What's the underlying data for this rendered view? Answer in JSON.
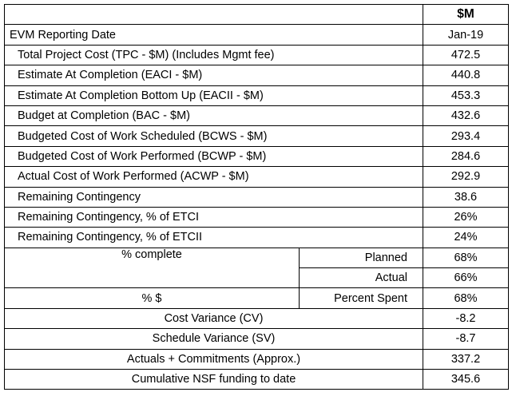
{
  "header": {
    "unit": "$M"
  },
  "rows": [
    {
      "label": "EVM Reporting Date",
      "value": "Jan-19"
    },
    {
      "label": "Total Project Cost (TPC - $M) (Includes Mgmt fee)",
      "value": "472.5"
    },
    {
      "label": "Estimate At Completion (EACI - $M)",
      "value": "440.8"
    },
    {
      "label": "Estimate At Completion Bottom Up (EACII - $M)",
      "value": "453.3"
    },
    {
      "label": "Budget at Completion (BAC - $M)",
      "value": "432.6"
    },
    {
      "label": "Budgeted Cost of Work Scheduled (BCWS - $M)",
      "value": "293.4"
    },
    {
      "label": "Budgeted Cost of Work Performed (BCWP - $M)",
      "value": "284.6"
    },
    {
      "label": "Actual Cost of Work Performed (ACWP - $M)",
      "value": "292.9"
    },
    {
      "label": "Remaining Contingency",
      "value": "38.6"
    },
    {
      "label": "Remaining Contingency, % of ETCI",
      "value": "26%"
    },
    {
      "label": "Remaining Contingency, % of ETCII",
      "value": "24%"
    }
  ],
  "percent_complete": {
    "label": "% complete",
    "planned_label": "Planned",
    "planned_value": "68%",
    "actual_label": "Actual",
    "actual_value": "66%"
  },
  "percent_dollars": {
    "label": "% $",
    "spent_label": "Percent Spent",
    "spent_value": "68%"
  },
  "bottom_rows": [
    {
      "label": "Cost Variance (CV)",
      "value": "-8.2"
    },
    {
      "label": "Schedule Variance (SV)",
      "value": "-8.7"
    },
    {
      "label": "Actuals + Commitments (Approx.)",
      "value": "337.2"
    },
    {
      "label": "Cumulative NSF funding to date",
      "value": "345.6"
    }
  ]
}
